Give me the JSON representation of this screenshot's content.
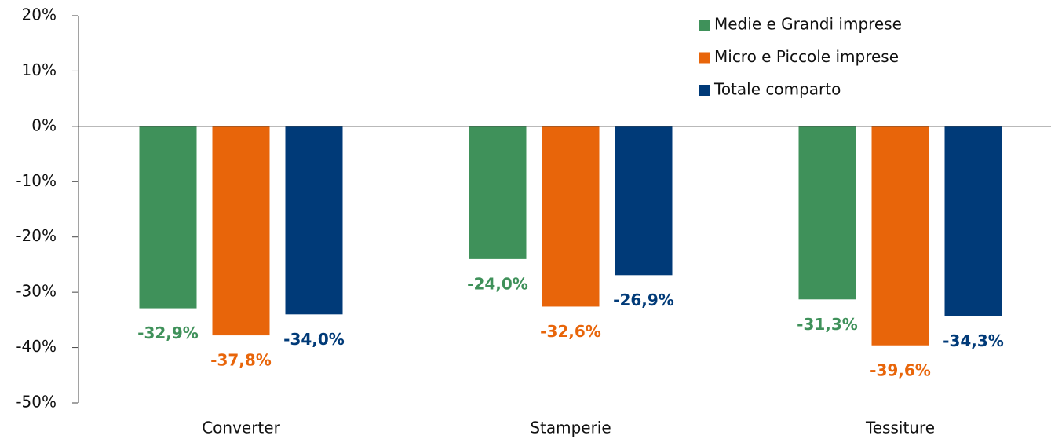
{
  "chart_data": {
    "type": "bar",
    "categories": [
      "Converter",
      "Stamperie",
      "Tessiture"
    ],
    "series": [
      {
        "name": "Medie e Grandi imprese",
        "color": "#3f915a",
        "values": [
          -32.9,
          -24.0,
          -31.3
        ],
        "value_labels": [
          "-32,9%",
          "-24,0%",
          "-31,3%"
        ]
      },
      {
        "name": "Micro e Piccole imprese",
        "color": "#e8650a",
        "values": [
          -37.8,
          -32.6,
          -39.6
        ],
        "value_labels": [
          "-37,8%",
          "-32,6%",
          "-39,6%"
        ]
      },
      {
        "name": "Totale comparto",
        "color": "#003a78",
        "values": [
          -34.0,
          -26.9,
          -34.3
        ],
        "value_labels": [
          "-34,0%",
          "-26,9%",
          "-34,3%"
        ]
      }
    ],
    "ylim": [
      -50,
      20
    ],
    "yticks": [
      {
        "value": 20,
        "label": "20%"
      },
      {
        "value": 10,
        "label": "10%"
      },
      {
        "value": 0,
        "label": "0%"
      },
      {
        "value": -10,
        "label": "-10%"
      },
      {
        "value": -20,
        "label": "-20%"
      },
      {
        "value": -30,
        "label": "-30%"
      },
      {
        "value": -40,
        "label": "-40%"
      },
      {
        "value": -50,
        "label": "-50%"
      }
    ],
    "legend": "top-right",
    "grid": false
  }
}
